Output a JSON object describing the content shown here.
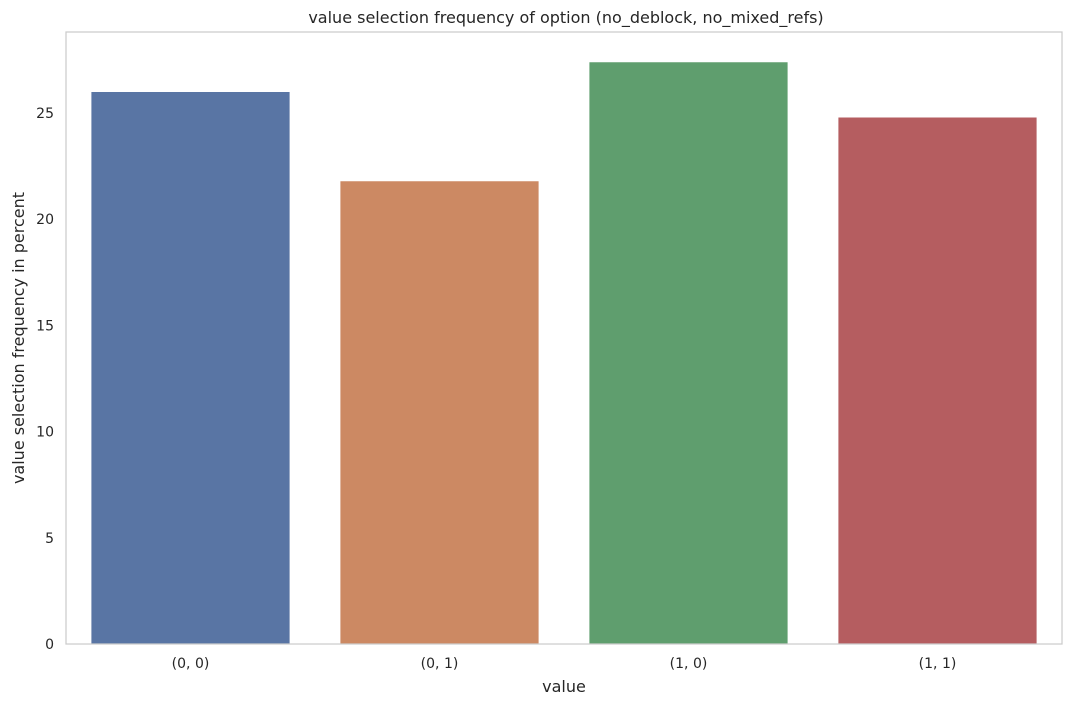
{
  "chart_data": {
    "type": "bar",
    "title": "value selection frequency of option (no_deblock, no_mixed_refs)",
    "xlabel": "value",
    "ylabel": "value selection frequency in percent",
    "categories": [
      "(0, 0)",
      "(0, 1)",
      "(1, 0)",
      "(1, 1)"
    ],
    "values": [
      26.0,
      21.8,
      27.4,
      24.8
    ],
    "colors": [
      "#5975a4",
      "#cc8963",
      "#5f9e6e",
      "#b55d60"
    ],
    "ylim": [
      0,
      28.8
    ],
    "yticks": [
      0,
      5,
      10,
      15,
      20,
      25
    ],
    "grid": false,
    "legend": "none"
  }
}
